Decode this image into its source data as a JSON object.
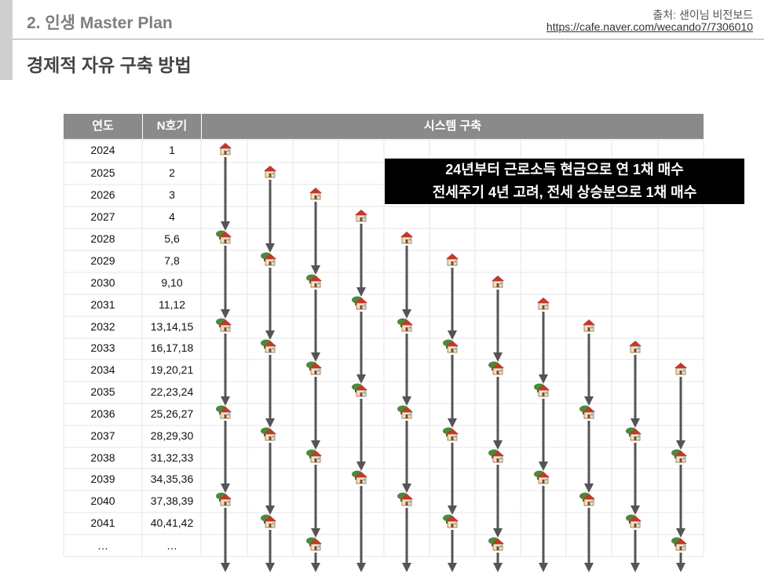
{
  "header": {
    "section": "2. 인생 Master Plan",
    "source_label": "출처: 샌이님 비전보드",
    "source_url": "https://cafe.naver.com/wecando7/7306010"
  },
  "title": "경제적 자유 구축 방법",
  "table": {
    "columns": [
      "연도",
      "N호기",
      "시스템 구축"
    ],
    "rows": [
      {
        "year": "2024",
        "n": "1"
      },
      {
        "year": "2025",
        "n": "2"
      },
      {
        "year": "2026",
        "n": "3"
      },
      {
        "year": "2027",
        "n": "4"
      },
      {
        "year": "2028",
        "n": "5,6"
      },
      {
        "year": "2029",
        "n": "7,8"
      },
      {
        "year": "2030",
        "n": "9,10"
      },
      {
        "year": "2031",
        "n": "11,12"
      },
      {
        "year": "2032",
        "n": "13,14,15"
      },
      {
        "year": "2033",
        "n": "16,17,18"
      },
      {
        "year": "2034",
        "n": "19,20,21"
      },
      {
        "year": "2035",
        "n": "22,23,24"
      },
      {
        "year": "2036",
        "n": "25,26,27"
      },
      {
        "year": "2037",
        "n": "28,29,30"
      },
      {
        "year": "2038",
        "n": "31,32,33"
      },
      {
        "year": "2039",
        "n": "34,35,36"
      },
      {
        "year": "2040",
        "n": "37,38,39"
      },
      {
        "year": "2041",
        "n": "40,41,42"
      },
      {
        "year": "…",
        "n": "…"
      }
    ]
  },
  "callout": {
    "line1": "24년부터 근로소득 현금으로 연 1채 매수",
    "line2": "전세주기 4년 고려, 전세 상승분으로 1채 매수"
  },
  "icons": {
    "purchase": "house-icon",
    "reinvest": "house-with-tree-icon",
    "timeline": "down-arrow-icon"
  },
  "colors": {
    "header_bg": "#8a8a8a",
    "arrow": "#555555",
    "callout_bg": "#000000",
    "roof": "#c0392b",
    "tree": "#4a8a3a"
  }
}
